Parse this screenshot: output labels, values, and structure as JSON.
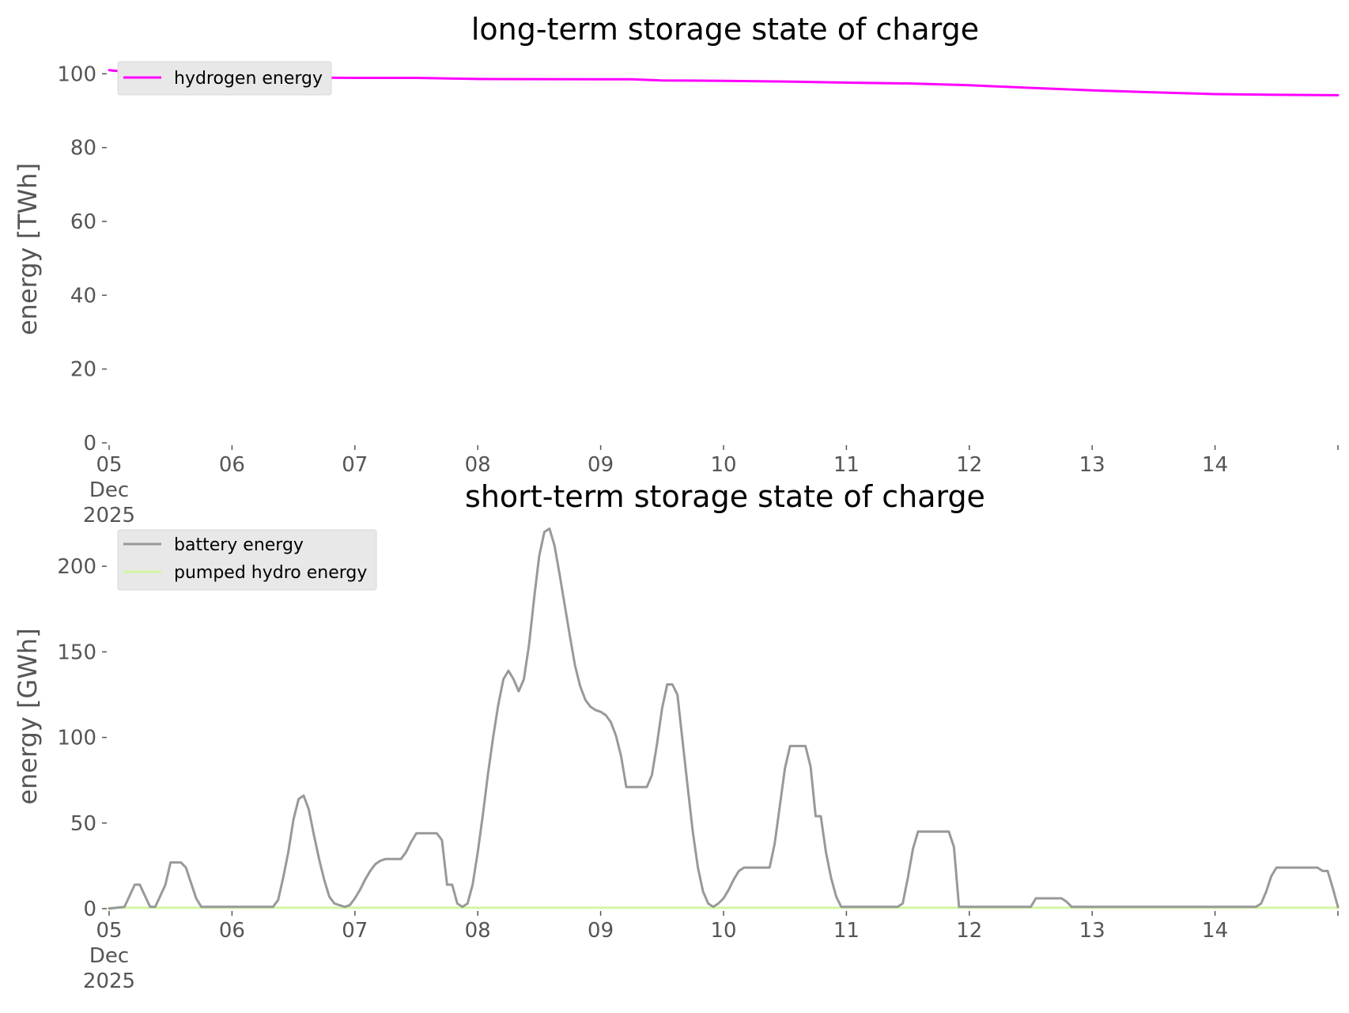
{
  "chart_data": [
    {
      "type": "line",
      "title": "long-term storage state of charge",
      "xlabel": "",
      "ylabel": "energy [TWh]",
      "ylim": [
        0,
        105
      ],
      "yticks": [
        0,
        20,
        40,
        60,
        80,
        100
      ],
      "xlim": [
        "2025-12-05",
        "2025-12-15"
      ],
      "xtick_labels": [
        "05",
        "06",
        "07",
        "08",
        "09",
        "10",
        "11",
        "12",
        "13",
        "14"
      ],
      "xtick_first_extra": [
        "Dec",
        "2025"
      ],
      "grid": false,
      "legend_position": "upper-left",
      "series": [
        {
          "name": "hydrogen energy",
          "color": "#ff00ff",
          "points": [
            [
              "2025-12-05T00:00",
              101.0
            ],
            [
              "2025-12-05T06:00",
              100.2
            ],
            [
              "2025-12-05T12:00",
              99.6
            ],
            [
              "2025-12-06T00:00",
              99.1
            ],
            [
              "2025-12-07T00:00",
              98.9
            ],
            [
              "2025-12-07T12:00",
              98.9
            ],
            [
              "2025-12-08T00:00",
              98.6
            ],
            [
              "2025-12-09T00:00",
              98.5
            ],
            [
              "2025-12-09T06:00",
              98.5
            ],
            [
              "2025-12-09T12:00",
              98.2
            ],
            [
              "2025-12-10T00:00",
              98.1
            ],
            [
              "2025-12-10T12:00",
              97.9
            ],
            [
              "2025-12-11T00:00",
              97.6
            ],
            [
              "2025-12-11T12:00",
              97.4
            ],
            [
              "2025-12-12T00:00",
              96.9
            ],
            [
              "2025-12-12T12:00",
              96.2
            ],
            [
              "2025-12-13T00:00",
              95.5
            ],
            [
              "2025-12-13T12:00",
              95.0
            ],
            [
              "2025-12-14T00:00",
              94.5
            ],
            [
              "2025-12-14T12:00",
              94.3
            ],
            [
              "2025-12-15T00:00",
              94.2
            ]
          ]
        }
      ]
    },
    {
      "type": "line",
      "title": "short-term storage state of charge",
      "xlabel": "",
      "ylabel": "energy [GWh]",
      "ylim": [
        0,
        225
      ],
      "yticks": [
        0,
        50,
        100,
        150,
        200
      ],
      "xlim": [
        "2025-12-05",
        "2025-12-15"
      ],
      "xtick_labels": [
        "05",
        "06",
        "07",
        "08",
        "09",
        "10",
        "11",
        "12",
        "13",
        "14"
      ],
      "xtick_first_extra": [
        "Dec",
        "2025"
      ],
      "grid": false,
      "legend_position": "upper-left",
      "series": [
        {
          "name": "battery energy",
          "color": "#999999",
          "points": [
            [
              "2025-12-05T00:00",
              0
            ],
            [
              "2025-12-05T03:00",
              1
            ],
            [
              "2025-12-05T05:00",
              14
            ],
            [
              "2025-12-05T06:00",
              14
            ],
            [
              "2025-12-05T08:00",
              1
            ],
            [
              "2025-12-05T09:00",
              1
            ],
            [
              "2025-12-05T11:00",
              14
            ],
            [
              "2025-12-05T12:00",
              27
            ],
            [
              "2025-12-05T14:00",
              27
            ],
            [
              "2025-12-05T15:00",
              24
            ],
            [
              "2025-12-05T17:00",
              6
            ],
            [
              "2025-12-05T18:00",
              1
            ],
            [
              "2025-12-06T08:00",
              1
            ],
            [
              "2025-12-06T09:00",
              5
            ],
            [
              "2025-12-06T10:00",
              18
            ],
            [
              "2025-12-06T11:00",
              33
            ],
            [
              "2025-12-06T12:00",
              52
            ],
            [
              "2025-12-06T13:00",
              64
            ],
            [
              "2025-12-06T14:00",
              66
            ],
            [
              "2025-12-06T15:00",
              58
            ],
            [
              "2025-12-06T16:00",
              43
            ],
            [
              "2025-12-06T17:00",
              29
            ],
            [
              "2025-12-06T18:00",
              17
            ],
            [
              "2025-12-06T19:00",
              7
            ],
            [
              "2025-12-06T20:00",
              3
            ],
            [
              "2025-12-06T22:00",
              1
            ],
            [
              "2025-12-06T23:00",
              2
            ],
            [
              "2025-12-07T00:00",
              6
            ],
            [
              "2025-12-07T01:00",
              11
            ],
            [
              "2025-12-07T02:00",
              17
            ],
            [
              "2025-12-07T03:00",
              22
            ],
            [
              "2025-12-07T04:00",
              26
            ],
            [
              "2025-12-07T05:00",
              28
            ],
            [
              "2025-12-07T06:00",
              29
            ],
            [
              "2025-12-07T09:00",
              29
            ],
            [
              "2025-12-07T10:00",
              33
            ],
            [
              "2025-12-07T11:00",
              39
            ],
            [
              "2025-12-07T12:00",
              44
            ],
            [
              "2025-12-07T16:00",
              44
            ],
            [
              "2025-12-07T17:00",
              40
            ],
            [
              "2025-12-07T18:00",
              14
            ],
            [
              "2025-12-07T19:00",
              14
            ],
            [
              "2025-12-07T20:00",
              3
            ],
            [
              "2025-12-07T21:00",
              1
            ],
            [
              "2025-12-07T22:00",
              3
            ],
            [
              "2025-12-07T23:00",
              14
            ],
            [
              "2025-12-08T00:00",
              33
            ],
            [
              "2025-12-08T01:00",
              55
            ],
            [
              "2025-12-08T02:00",
              79
            ],
            [
              "2025-12-08T03:00",
              100
            ],
            [
              "2025-12-08T04:00",
              119
            ],
            [
              "2025-12-08T05:00",
              134
            ],
            [
              "2025-12-08T06:00",
              139
            ],
            [
              "2025-12-08T07:00",
              134
            ],
            [
              "2025-12-08T08:00",
              127
            ],
            [
              "2025-12-08T09:00",
              134
            ],
            [
              "2025-12-08T10:00",
              154
            ],
            [
              "2025-12-08T11:00",
              181
            ],
            [
              "2025-12-08T12:00",
              206
            ],
            [
              "2025-12-08T13:00",
              220
            ],
            [
              "2025-12-08T14:00",
              222
            ],
            [
              "2025-12-08T15:00",
              212
            ],
            [
              "2025-12-08T16:00",
              195
            ],
            [
              "2025-12-08T17:00",
              177
            ],
            [
              "2025-12-08T18:00",
              159
            ],
            [
              "2025-12-08T19:00",
              142
            ],
            [
              "2025-12-08T20:00",
              130
            ],
            [
              "2025-12-08T21:00",
              122
            ],
            [
              "2025-12-08T22:00",
              118
            ],
            [
              "2025-12-08T23:00",
              116
            ],
            [
              "2025-12-09T00:00",
              115
            ],
            [
              "2025-12-09T01:00",
              113
            ],
            [
              "2025-12-09T02:00",
              109
            ],
            [
              "2025-12-09T03:00",
              101
            ],
            [
              "2025-12-09T04:00",
              89
            ],
            [
              "2025-12-09T05:00",
              71
            ],
            [
              "2025-12-09T09:00",
              71
            ],
            [
              "2025-12-09T10:00",
              78
            ],
            [
              "2025-12-09T11:00",
              96
            ],
            [
              "2025-12-09T12:00",
              117
            ],
            [
              "2025-12-09T13:00",
              131
            ],
            [
              "2025-12-09T14:00",
              131
            ],
            [
              "2025-12-09T15:00",
              125
            ],
            [
              "2025-12-09T16:00",
              98
            ],
            [
              "2025-12-09T17:00",
              71
            ],
            [
              "2025-12-09T18:00",
              45
            ],
            [
              "2025-12-09T19:00",
              24
            ],
            [
              "2025-12-09T20:00",
              10
            ],
            [
              "2025-12-09T21:00",
              3
            ],
            [
              "2025-12-09T22:00",
              1
            ],
            [
              "2025-12-09T23:00",
              3
            ],
            [
              "2025-12-10T00:00",
              6
            ],
            [
              "2025-12-10T01:00",
              11
            ],
            [
              "2025-12-10T02:00",
              17
            ],
            [
              "2025-12-10T03:00",
              22
            ],
            [
              "2025-12-10T04:00",
              24
            ],
            [
              "2025-12-10T09:00",
              24
            ],
            [
              "2025-12-10T10:00",
              38
            ],
            [
              "2025-12-10T11:00",
              60
            ],
            [
              "2025-12-10T12:00",
              82
            ],
            [
              "2025-12-10T13:00",
              95
            ],
            [
              "2025-12-10T16:00",
              95
            ],
            [
              "2025-12-10T17:00",
              83
            ],
            [
              "2025-12-10T18:00",
              54
            ],
            [
              "2025-12-10T19:00",
              54
            ],
            [
              "2025-12-10T20:00",
              33
            ],
            [
              "2025-12-10T21:00",
              18
            ],
            [
              "2025-12-10T22:00",
              7
            ],
            [
              "2025-12-10T23:00",
              1
            ],
            [
              "2025-12-11T10:00",
              1
            ],
            [
              "2025-12-11T11:00",
              3
            ],
            [
              "2025-12-11T12:00",
              18
            ],
            [
              "2025-12-11T13:00",
              35
            ],
            [
              "2025-12-11T14:00",
              45
            ],
            [
              "2025-12-11T20:00",
              45
            ],
            [
              "2025-12-11T21:00",
              36
            ],
            [
              "2025-12-11T22:00",
              1
            ],
            [
              "2025-12-12T12:00",
              1
            ],
            [
              "2025-12-12T13:00",
              6
            ],
            [
              "2025-12-12T18:00",
              6
            ],
            [
              "2025-12-12T19:00",
              4
            ],
            [
              "2025-12-12T20:00",
              1
            ],
            [
              "2025-12-14T08:00",
              1
            ],
            [
              "2025-12-14T09:00",
              3
            ],
            [
              "2025-12-14T10:00",
              10
            ],
            [
              "2025-12-14T11:00",
              19
            ],
            [
              "2025-12-14T12:00",
              24
            ],
            [
              "2025-12-14T20:00",
              24
            ],
            [
              "2025-12-14T21:00",
              22
            ],
            [
              "2025-12-14T22:00",
              22
            ],
            [
              "2025-12-14T23:00",
              12
            ],
            [
              "2025-12-15T00:00",
              1
            ]
          ]
        },
        {
          "name": "pumped hydro energy",
          "color": "#d4f5a3",
          "points": [
            [
              "2025-12-05T00:00",
              0.5
            ],
            [
              "2025-12-15T00:00",
              0.5
            ]
          ]
        }
      ]
    }
  ]
}
